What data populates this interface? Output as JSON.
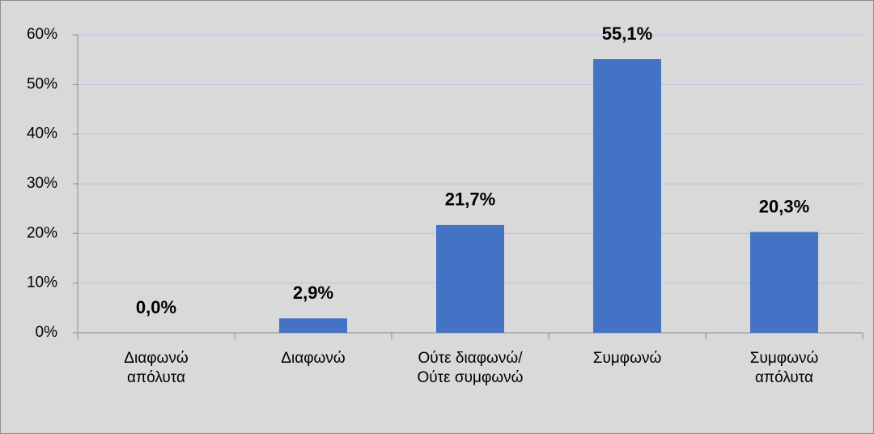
{
  "chart_data": {
    "type": "bar",
    "categories": [
      "Διαφωνώ απόλυτα",
      "Διαφωνώ",
      "Ούτε διαφωνώ/Ούτε συμφωνώ",
      "Συμφωνώ",
      "Συμφωνώ απόλυτα"
    ],
    "values": [
      0,
      2.9,
      21.7,
      55.1,
      20.3
    ],
    "value_labels": [
      "0,0%",
      "2,9%",
      "21,7%",
      "55,1%",
      "20,3%"
    ],
    "color": "#4472c4",
    "ylim": [
      0,
      60
    ],
    "yticks": [
      {
        "value": 0,
        "label": "0%"
      },
      {
        "value": 10,
        "label": "10%"
      },
      {
        "value": 20,
        "label": "20%"
      },
      {
        "value": 30,
        "label": "30%"
      },
      {
        "value": 40,
        "label": "40%"
      },
      {
        "value": 50,
        "label": "50%"
      },
      {
        "value": 60,
        "label": "60%"
      }
    ],
    "grid": true
  }
}
